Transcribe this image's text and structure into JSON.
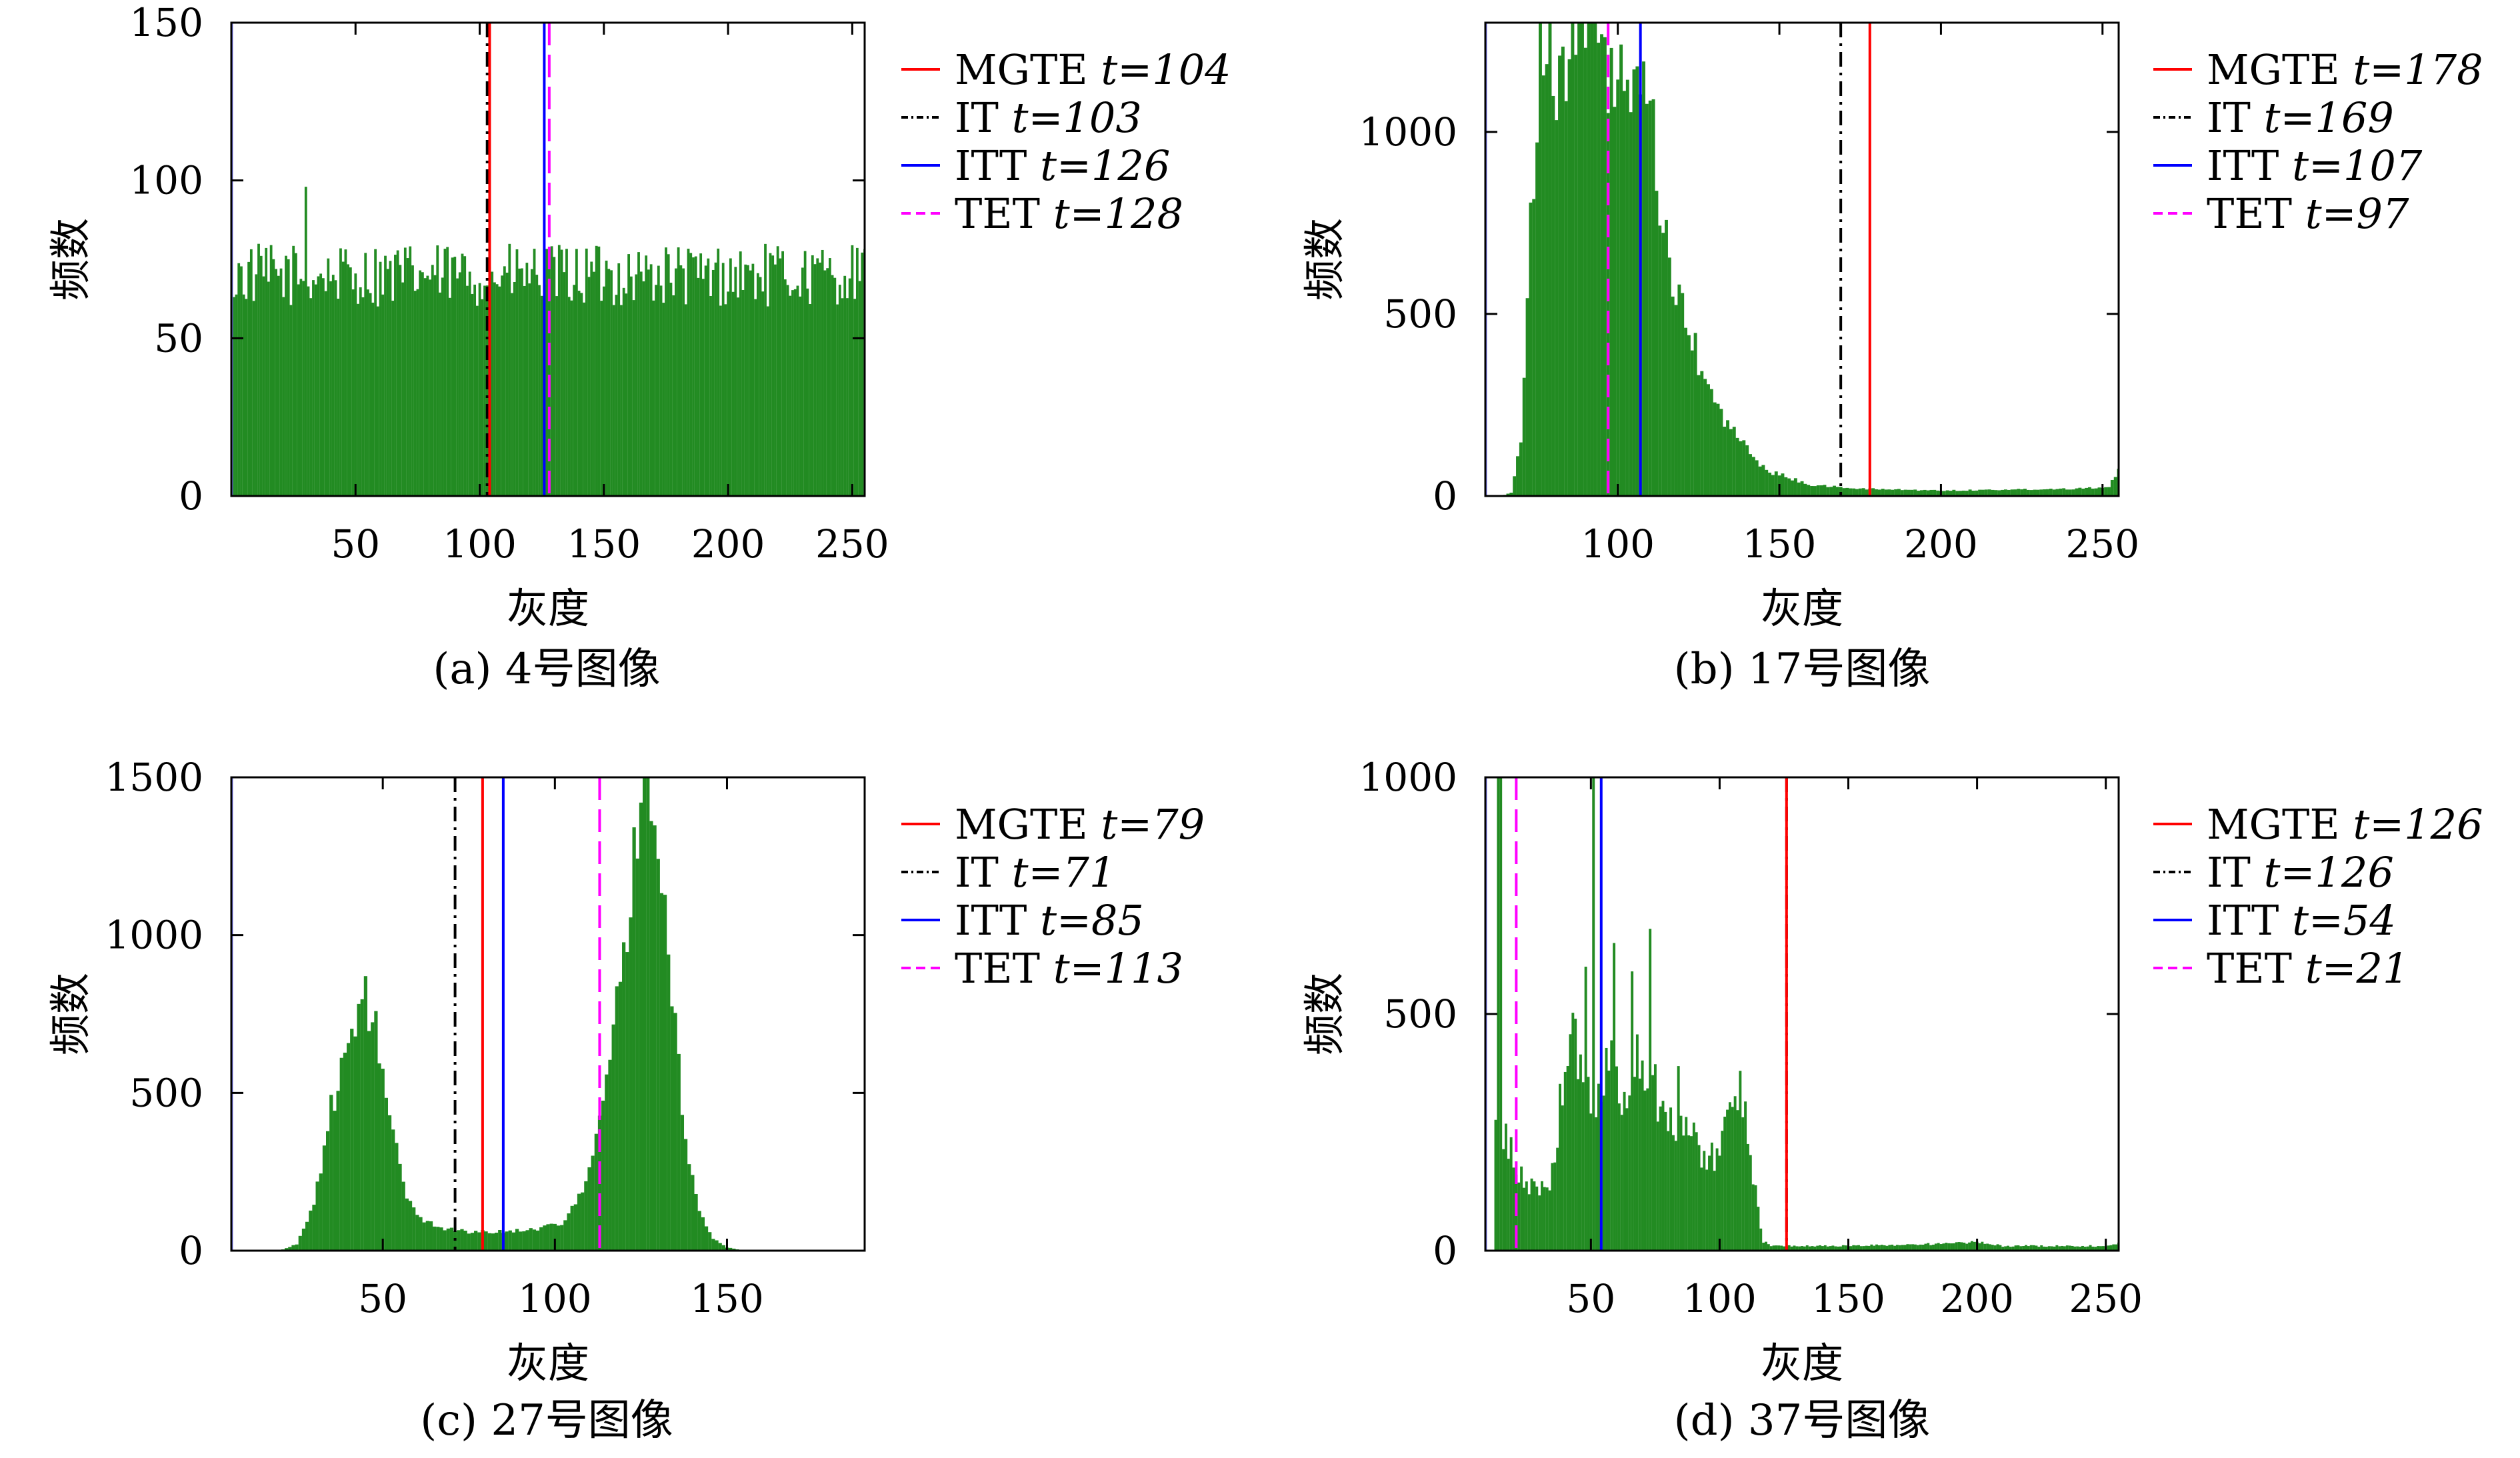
{
  "chart_data": [
    {
      "type": "bar",
      "caption": "(a) 4号图像",
      "xlabel": "灰度",
      "ylabel": "频数",
      "xlim": [
        0,
        255
      ],
      "ylim": [
        0,
        150
      ],
      "xticks": [
        50,
        100,
        150,
        200,
        250
      ],
      "yticks": [
        0,
        50,
        100,
        150
      ],
      "grid": false,
      "legend_position": "right",
      "bar_color": "#228B22",
      "histogram_profile": [
        [
          0,
          70
        ],
        [
          255,
          70
        ]
      ],
      "histogram_noise": 10,
      "spikes": [
        [
          30,
          98
        ]
      ],
      "thresholds": [
        {
          "method": "MGTE",
          "t": 104,
          "label": "MGTE",
          "value_label": "t=104",
          "color": "#ff0000",
          "style": "solid"
        },
        {
          "method": "IT",
          "t": 103,
          "label": "IT",
          "value_label": "t=103",
          "color": "#000000",
          "style": "dashdot"
        },
        {
          "method": "ITT",
          "t": 126,
          "label": "ITT",
          "value_label": "t=126",
          "color": "#0000ff",
          "style": "solid"
        },
        {
          "method": "TET",
          "t": 128,
          "label": "TET",
          "value_label": "t=128",
          "color": "#ff00ff",
          "style": "dashed"
        }
      ]
    },
    {
      "type": "bar",
      "caption": "(b) 17号图像",
      "xlabel": "灰度",
      "ylabel": "频数",
      "xlim": [
        59,
        255
      ],
      "ylim": [
        0,
        1300
      ],
      "xticks": [
        100,
        150,
        200,
        250
      ],
      "yticks": [
        0,
        500,
        1000
      ],
      "grid": false,
      "legend_position": "right",
      "bar_color": "#228B22",
      "histogram_profile": [
        [
          59,
          0
        ],
        [
          64,
          0
        ],
        [
          67,
          10
        ],
        [
          70,
          150
        ],
        [
          73,
          800
        ],
        [
          76,
          1050
        ],
        [
          80,
          1150
        ],
        [
          86,
          1250
        ],
        [
          92,
          1280
        ],
        [
          98,
          1150
        ],
        [
          104,
          1100
        ],
        [
          110,
          1050
        ],
        [
          114,
          750
        ],
        [
          118,
          550
        ],
        [
          124,
          400
        ],
        [
          130,
          250
        ],
        [
          138,
          150
        ],
        [
          146,
          70
        ],
        [
          160,
          30
        ],
        [
          175,
          20
        ],
        [
          200,
          15
        ],
        [
          240,
          20
        ],
        [
          252,
          25
        ],
        [
          255,
          70
        ]
      ],
      "histogram_noise": 0.12,
      "spikes": [
        [
          76,
          1300
        ],
        [
          79,
          1300
        ],
        [
          88,
          1300
        ],
        [
          91,
          1300
        ],
        [
          96,
          1260
        ],
        [
          101,
          1240
        ],
        [
          106,
          1180
        ]
      ],
      "thresholds": [
        {
          "method": "MGTE",
          "t": 178,
          "label": "MGTE",
          "value_label": "t=178",
          "color": "#ff0000",
          "style": "solid"
        },
        {
          "method": "IT",
          "t": 169,
          "label": "IT",
          "value_label": "t=169",
          "color": "#000000",
          "style": "dashdot"
        },
        {
          "method": "ITT",
          "t": 107,
          "label": "ITT",
          "value_label": "t=107",
          "color": "#0000ff",
          "style": "solid"
        },
        {
          "method": "TET",
          "t": 97,
          "label": "TET",
          "value_label": "t=97",
          "color": "#ff00ff",
          "style": "dashed"
        }
      ]
    },
    {
      "type": "bar",
      "caption": "(c) 27号图像",
      "xlabel": "灰度",
      "ylabel": "频数",
      "xlim": [
        6,
        190
      ],
      "ylim": [
        0,
        1500
      ],
      "xticks": [
        50,
        100,
        150
      ],
      "yticks": [
        0,
        500,
        1000,
        1500
      ],
      "grid": false,
      "legend_position": "right",
      "bar_color": "#228B22",
      "histogram_profile": [
        [
          6,
          0
        ],
        [
          20,
          0
        ],
        [
          25,
          20
        ],
        [
          30,
          150
        ],
        [
          35,
          450
        ],
        [
          40,
          650
        ],
        [
          45,
          760
        ],
        [
          48,
          700
        ],
        [
          52,
          450
        ],
        [
          56,
          200
        ],
        [
          60,
          110
        ],
        [
          66,
          75
        ],
        [
          75,
          60
        ],
        [
          85,
          60
        ],
        [
          95,
          70
        ],
        [
          102,
          90
        ],
        [
          108,
          180
        ],
        [
          112,
          350
        ],
        [
          116,
          600
        ],
        [
          120,
          950
        ],
        [
          124,
          1350
        ],
        [
          127,
          1480
        ],
        [
          130,
          1280
        ],
        [
          134,
          800
        ],
        [
          138,
          350
        ],
        [
          142,
          120
        ],
        [
          146,
          40
        ],
        [
          150,
          10
        ],
        [
          155,
          0
        ],
        [
          190,
          0
        ]
      ],
      "histogram_noise": 0.1,
      "spikes": [
        [
          45,
          870
        ],
        [
          127,
          1500
        ]
      ],
      "thresholds": [
        {
          "method": "MGTE",
          "t": 79,
          "label": "MGTE",
          "value_label": "t=79",
          "color": "#ff0000",
          "style": "solid"
        },
        {
          "method": "IT",
          "t": 71,
          "label": "IT",
          "value_label": "t=71",
          "color": "#000000",
          "style": "dashdot"
        },
        {
          "method": "ITT",
          "t": 85,
          "label": "ITT",
          "value_label": "t=85",
          "color": "#0000ff",
          "style": "solid"
        },
        {
          "method": "TET",
          "t": 113,
          "label": "TET",
          "value_label": "t=113",
          "color": "#ff00ff",
          "style": "dashed"
        }
      ]
    },
    {
      "type": "bar",
      "caption": "(d) 37号图像",
      "xlabel": "灰度",
      "ylabel": "频数",
      "xlim": [
        9,
        255
      ],
      "ylim": [
        0,
        1000
      ],
      "xticks": [
        50,
        100,
        150,
        200,
        250
      ],
      "yticks": [
        0,
        500,
        1000
      ],
      "grid": false,
      "legend_position": "right",
      "bar_color": "#228B22",
      "histogram_profile": [
        [
          9,
          0
        ],
        [
          12,
          0
        ],
        [
          13,
          250
        ],
        [
          17,
          250
        ],
        [
          20,
          180
        ],
        [
          25,
          140
        ],
        [
          30,
          130
        ],
        [
          34,
          150
        ],
        [
          37,
          250
        ],
        [
          40,
          400
        ],
        [
          44,
          450
        ],
        [
          48,
          350
        ],
        [
          52,
          280
        ],
        [
          56,
          420
        ],
        [
          60,
          380
        ],
        [
          64,
          300
        ],
        [
          68,
          420
        ],
        [
          72,
          380
        ],
        [
          76,
          330
        ],
        [
          80,
          300
        ],
        [
          85,
          270
        ],
        [
          90,
          230
        ],
        [
          95,
          200
        ],
        [
          100,
          200
        ],
        [
          104,
          300
        ],
        [
          107,
          350
        ],
        [
          110,
          330
        ],
        [
          113,
          150
        ],
        [
          117,
          20
        ],
        [
          120,
          10
        ],
        [
          150,
          10
        ],
        [
          190,
          15
        ],
        [
          200,
          18
        ],
        [
          210,
          10
        ],
        [
          250,
          10
        ],
        [
          255,
          15
        ]
      ],
      "histogram_noise": 0.18,
      "spikes": [
        [
          14,
          1000
        ],
        [
          15,
          1000
        ],
        [
          48,
          600
        ],
        [
          51,
          1000
        ],
        [
          59,
          650
        ],
        [
          66,
          590
        ],
        [
          73,
          680
        ],
        [
          84,
          390
        ],
        [
          108,
          380
        ]
      ],
      "thresholds": [
        {
          "method": "MGTE",
          "t": 126,
          "label": "MGTE",
          "value_label": "t=126",
          "color": "#ff0000",
          "style": "solid"
        },
        {
          "method": "IT",
          "t": 126,
          "label": "IT",
          "value_label": "t=126",
          "color": "#000000",
          "style": "dashdot"
        },
        {
          "method": "ITT",
          "t": 54,
          "label": "ITT",
          "value_label": "t=54",
          "color": "#0000ff",
          "style": "solid"
        },
        {
          "method": "TET",
          "t": 21,
          "label": "TET",
          "value_label": "t=21",
          "color": "#ff00ff",
          "style": "dashed"
        }
      ]
    }
  ]
}
